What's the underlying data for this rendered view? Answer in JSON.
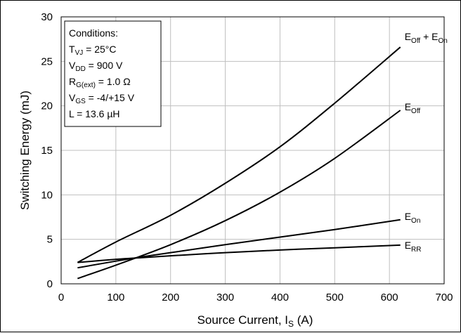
{
  "chart_data": {
    "type": "line",
    "xlabel_main": "Source Current, I",
    "xlabel_sub": "S",
    "xlabel_unit": " (A)",
    "ylabel": "Switching Energy (mJ)",
    "xlim": [
      0,
      700
    ],
    "ylim": [
      0,
      30
    ],
    "xticks": [
      0,
      100,
      200,
      300,
      400,
      500,
      600,
      700
    ],
    "yticks": [
      0,
      5,
      10,
      15,
      20,
      25,
      30
    ],
    "grid": true,
    "line_color": "#000000",
    "grid_color": "#bfbfbf",
    "conditions": {
      "title": "Conditions:",
      "tvj_main": "T",
      "tvj_sub": "VJ",
      "tvj_value": " = 25°C",
      "vdd_main": "V",
      "vdd_sub": "DD",
      "vdd_value": " = 900 V",
      "rg_main": "R",
      "rg_sub": "G(ext)",
      "rg_value": " = 1.0 Ω",
      "vgs_main": "V",
      "vgs_sub": "GS",
      "vgs_value": " = -4/+15 V",
      "l_line": "L = 13.6 µH"
    },
    "series": [
      {
        "label_parts": [
          [
            "E",
            ""
          ],
          [
            "Off",
            "sub"
          ],
          [
            " + E",
            ""
          ],
          [
            "On",
            "sub"
          ]
        ],
        "x": [
          30,
          100,
          200,
          300,
          400,
          500,
          620
        ],
        "y": [
          2.4,
          4.7,
          7.7,
          11.3,
          15.4,
          20.3,
          26.6
        ]
      },
      {
        "label_parts": [
          [
            "E",
            ""
          ],
          [
            "Off",
            "sub"
          ]
        ],
        "x": [
          30,
          100,
          200,
          300,
          400,
          500,
          620
        ],
        "y": [
          0.6,
          2.1,
          4.4,
          7.1,
          10.3,
          14.1,
          19.5
        ]
      },
      {
        "label_parts": [
          [
            "E",
            ""
          ],
          [
            "On",
            "sub"
          ]
        ],
        "x": [
          30,
          100,
          150,
          200,
          300,
          400,
          500,
          620
        ],
        "y": [
          1.8,
          2.55,
          3.05,
          3.5,
          4.4,
          5.25,
          6.1,
          7.2
        ]
      },
      {
        "label_parts": [
          [
            "E",
            ""
          ],
          [
            "RR",
            "sub"
          ]
        ],
        "x": [
          30,
          100,
          150,
          200,
          300,
          400,
          500,
          620
        ],
        "y": [
          2.4,
          2.75,
          2.95,
          3.15,
          3.5,
          3.8,
          4.05,
          4.35
        ]
      }
    ]
  }
}
